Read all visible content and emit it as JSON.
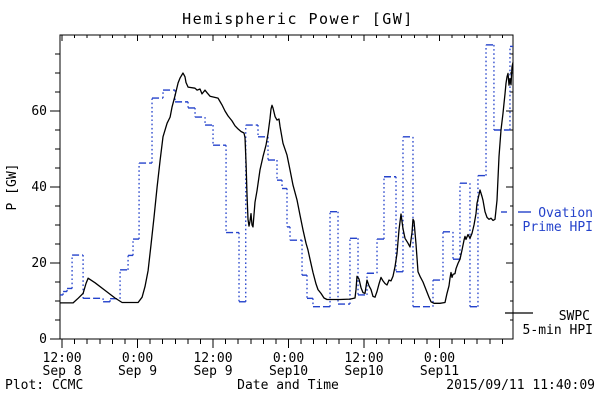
{
  "title": "Hemispheric Power [GW]",
  "ylabel": "P [GW]",
  "footer": {
    "credit": "Plot: CCMC",
    "xlabel": "Date and Time",
    "timestamp": "2015/09/11 11:40:09"
  },
  "colors": {
    "ovation": "#2442CB",
    "swpc": "#000000"
  },
  "legend": {
    "ovation_line1": "Ovation",
    "ovation_line2": "Prime HPI",
    "swpc_line1": "SWPC",
    "swpc_line2": "5-min HPI"
  },
  "chart_data": {
    "type": "line",
    "title": "Hemispheric Power [GW]",
    "xlabel": "Date and Time",
    "ylabel": "P [GW]",
    "ylim": [
      0,
      80
    ],
    "yticks": [
      0,
      20,
      40,
      60
    ],
    "y_minor_step": 5,
    "x_hours_range": [
      -0.33,
      71.69
    ],
    "x_epoch": "hours after 2015-09-08 12:00",
    "x_minor_step_hours": 2,
    "grid": false,
    "legend_position": "right-outside",
    "xticks": [
      {
        "h": 0,
        "time": "12:00",
        "date": "Sep 8"
      },
      {
        "h": 12,
        "time": "0:00",
        "date": "Sep 9"
      },
      {
        "h": 24,
        "time": "12:00",
        "date": "Sep 9"
      },
      {
        "h": 36,
        "time": "0:00",
        "date": "Sep10"
      },
      {
        "h": 48,
        "time": "12:00",
        "date": "Sep10"
      },
      {
        "h": 60,
        "time": "0:00",
        "date": "Sep11"
      }
    ],
    "series": [
      {
        "name": "Ovation Prime HPI",
        "color": "#2442CB",
        "style": "steps-dotted",
        "steps_h_gw": [
          [
            -0.32,
            11.6
          ],
          [
            0.16,
            12.5
          ],
          [
            0.79,
            13.3
          ],
          [
            1.59,
            22.1
          ],
          [
            3.34,
            10.7
          ],
          [
            6.52,
            9.8
          ],
          [
            7.63,
            10.6
          ],
          [
            9.22,
            18.2
          ],
          [
            10.49,
            22.0
          ],
          [
            11.28,
            26.3
          ],
          [
            12.24,
            46.3
          ],
          [
            14.3,
            63.4
          ],
          [
            16.05,
            65.5
          ],
          [
            17.96,
            62.4
          ],
          [
            20.03,
            60.8
          ],
          [
            21.14,
            58.4
          ],
          [
            22.73,
            56.3
          ],
          [
            24.0,
            51.0
          ],
          [
            26.07,
            28.0
          ],
          [
            28.13,
            9.8
          ],
          [
            29.2,
            56.3
          ],
          [
            31.15,
            53.2
          ],
          [
            32.74,
            47.1
          ],
          [
            34.17,
            41.8
          ],
          [
            34.97,
            39.6
          ],
          [
            35.76,
            29.5
          ],
          [
            36.24,
            26.0
          ],
          [
            38.15,
            16.8
          ],
          [
            38.94,
            10.7
          ],
          [
            39.89,
            8.5
          ],
          [
            42.6,
            33.5
          ],
          [
            43.87,
            9.2
          ],
          [
            45.77,
            26.5
          ],
          [
            47.05,
            11.6
          ],
          [
            48.48,
            17.3
          ],
          [
            50.07,
            26.3
          ],
          [
            51.18,
            42.7
          ],
          [
            53.09,
            17.7
          ],
          [
            54.2,
            53.2
          ],
          [
            55.79,
            8.5
          ],
          [
            58.97,
            15.5
          ],
          [
            60.56,
            28.2
          ],
          [
            62.15,
            21.0
          ],
          [
            63.26,
            41.0
          ],
          [
            64.85,
            8.5
          ],
          [
            66.12,
            43.0
          ],
          [
            67.4,
            77.4
          ],
          [
            68.66,
            55.0
          ],
          [
            71.21,
            77.0
          ]
        ],
        "steps_end_h": 71.69
      },
      {
        "name": "SWPC 5-min HPI",
        "color": "#000000",
        "style": "solid",
        "points_h_gw": [
          [
            -0.32,
            9.5
          ],
          [
            1.75,
            9.5
          ],
          [
            2.54,
            10.7
          ],
          [
            3.34,
            12.0
          ],
          [
            3.81,
            14.6
          ],
          [
            4.13,
            16.0
          ],
          [
            5.25,
            14.8
          ],
          [
            6.83,
            12.8
          ],
          [
            8.42,
            10.8
          ],
          [
            9.54,
            9.6
          ],
          [
            12.08,
            9.6
          ],
          [
            12.72,
            11.0
          ],
          [
            13.19,
            13.8
          ],
          [
            13.67,
            18.0
          ],
          [
            14.15,
            25.0
          ],
          [
            14.62,
            32.0
          ],
          [
            15.1,
            40.0
          ],
          [
            15.58,
            47.0
          ],
          [
            16.05,
            53.2
          ],
          [
            16.69,
            56.8
          ],
          [
            17.17,
            58.4
          ],
          [
            17.48,
            61.0
          ],
          [
            17.96,
            64.0
          ],
          [
            18.44,
            67.4
          ],
          [
            18.76,
            68.7
          ],
          [
            19.23,
            70.0
          ],
          [
            19.55,
            69.0
          ],
          [
            19.71,
            67.5
          ],
          [
            20.03,
            66.3
          ],
          [
            21.14,
            66.0
          ],
          [
            21.46,
            65.5
          ],
          [
            21.93,
            65.8
          ],
          [
            22.25,
            64.5
          ],
          [
            22.73,
            65.5
          ],
          [
            23.05,
            64.8
          ],
          [
            23.52,
            63.9
          ],
          [
            24.79,
            63.4
          ],
          [
            25.11,
            62.5
          ],
          [
            25.43,
            61.6
          ],
          [
            25.91,
            60.0
          ],
          [
            26.38,
            58.7
          ],
          [
            27.02,
            57.4
          ],
          [
            27.5,
            56.1
          ],
          [
            27.97,
            55.3
          ],
          [
            28.45,
            54.6
          ],
          [
            28.93,
            54.2
          ],
          [
            29.09,
            53.0
          ],
          [
            29.25,
            46.0
          ],
          [
            29.4,
            38.0
          ],
          [
            29.56,
            31.5
          ],
          [
            29.72,
            29.7
          ],
          [
            29.88,
            31.0
          ],
          [
            30.04,
            33.0
          ],
          [
            30.2,
            30.0
          ],
          [
            30.36,
            29.5
          ],
          [
            30.67,
            36.0
          ],
          [
            30.99,
            39.0
          ],
          [
            31.47,
            44.5
          ],
          [
            31.95,
            48.0
          ],
          [
            32.42,
            51.0
          ],
          [
            32.74,
            54.0
          ],
          [
            33.06,
            58.0
          ],
          [
            33.22,
            60.5
          ],
          [
            33.38,
            61.5
          ],
          [
            33.54,
            60.8
          ],
          [
            33.86,
            58.5
          ],
          [
            34.17,
            57.6
          ],
          [
            34.49,
            57.9
          ],
          [
            34.65,
            56.0
          ],
          [
            35.13,
            51.5
          ],
          [
            35.76,
            48.4
          ],
          [
            36.24,
            44.5
          ],
          [
            36.72,
            40.5
          ],
          [
            37.35,
            36.6
          ],
          [
            37.83,
            32.6
          ],
          [
            38.31,
            28.7
          ],
          [
            38.78,
            25.2
          ],
          [
            39.1,
            23.4
          ],
          [
            39.42,
            21.0
          ],
          [
            39.89,
            17.5
          ],
          [
            40.37,
            14.5
          ],
          [
            40.69,
            13.0
          ],
          [
            41.17,
            12.0
          ],
          [
            41.64,
            10.8
          ],
          [
            42.12,
            10.4
          ],
          [
            44.19,
            10.4
          ],
          [
            45.77,
            10.5
          ],
          [
            46.57,
            10.8
          ],
          [
            46.73,
            13.0
          ],
          [
            46.89,
            16.5
          ],
          [
            47.21,
            15.8
          ],
          [
            47.52,
            13.5
          ],
          [
            47.84,
            12.2
          ],
          [
            48.16,
            12.0
          ],
          [
            48.48,
            15.5
          ],
          [
            48.8,
            14.0
          ],
          [
            49.11,
            13.0
          ],
          [
            49.43,
            11.2
          ],
          [
            49.75,
            11.0
          ],
          [
            50.07,
            12.5
          ],
          [
            50.38,
            14.5
          ],
          [
            50.7,
            16.2
          ],
          [
            51.02,
            15.3
          ],
          [
            51.34,
            14.6
          ],
          [
            51.66,
            14.2
          ],
          [
            51.97,
            15.5
          ],
          [
            52.29,
            15.3
          ],
          [
            52.61,
            16.5
          ],
          [
            52.93,
            19.0
          ],
          [
            53.24,
            22.5
          ],
          [
            53.56,
            28.7
          ],
          [
            53.88,
            32.9
          ],
          [
            54.2,
            29.0
          ],
          [
            54.52,
            26.5
          ],
          [
            54.99,
            25.2
          ],
          [
            55.31,
            24.2
          ],
          [
            55.63,
            28.0
          ],
          [
            55.79,
            31.5
          ],
          [
            55.95,
            31.0
          ],
          [
            56.27,
            25.0
          ],
          [
            56.58,
            17.7
          ],
          [
            56.9,
            16.5
          ],
          [
            57.38,
            15.0
          ],
          [
            57.86,
            13.0
          ],
          [
            58.33,
            11.0
          ],
          [
            58.65,
            9.8
          ],
          [
            59.13,
            9.4
          ],
          [
            60.08,
            9.4
          ],
          [
            60.88,
            9.6
          ],
          [
            61.2,
            12.0
          ],
          [
            61.51,
            14.0
          ],
          [
            61.67,
            16.0
          ],
          [
            61.83,
            17.5
          ],
          [
            61.99,
            16.2
          ],
          [
            62.15,
            17.0
          ],
          [
            62.47,
            17.2
          ],
          [
            62.63,
            18.5
          ],
          [
            62.94,
            19.9
          ],
          [
            63.26,
            21.0
          ],
          [
            63.58,
            23.4
          ],
          [
            63.9,
            26.0
          ],
          [
            64.06,
            27.0
          ],
          [
            64.22,
            26.2
          ],
          [
            64.53,
            27.5
          ],
          [
            64.85,
            26.5
          ],
          [
            65.17,
            27.8
          ],
          [
            65.49,
            30.0
          ],
          [
            65.81,
            33.0
          ],
          [
            65.97,
            35.7
          ],
          [
            66.28,
            38.0
          ],
          [
            66.44,
            39.2
          ],
          [
            66.76,
            37.5
          ],
          [
            66.92,
            36.5
          ],
          [
            67.24,
            33.5
          ],
          [
            67.56,
            32.0
          ],
          [
            67.87,
            31.5
          ],
          [
            68.19,
            31.8
          ],
          [
            68.51,
            31.2
          ],
          [
            68.83,
            31.5
          ],
          [
            69.15,
            36.5
          ],
          [
            69.46,
            48.0
          ],
          [
            69.78,
            55.0
          ],
          [
            70.1,
            59.4
          ],
          [
            70.26,
            62.0
          ],
          [
            70.42,
            64.5
          ],
          [
            70.58,
            67.3
          ],
          [
            70.74,
            69.0
          ],
          [
            70.9,
            69.9
          ],
          [
            71.05,
            66.8
          ],
          [
            71.21,
            68.5
          ],
          [
            71.37,
            66.9
          ],
          [
            71.53,
            71.6
          ],
          [
            71.69,
            72.8
          ]
        ]
      }
    ]
  }
}
